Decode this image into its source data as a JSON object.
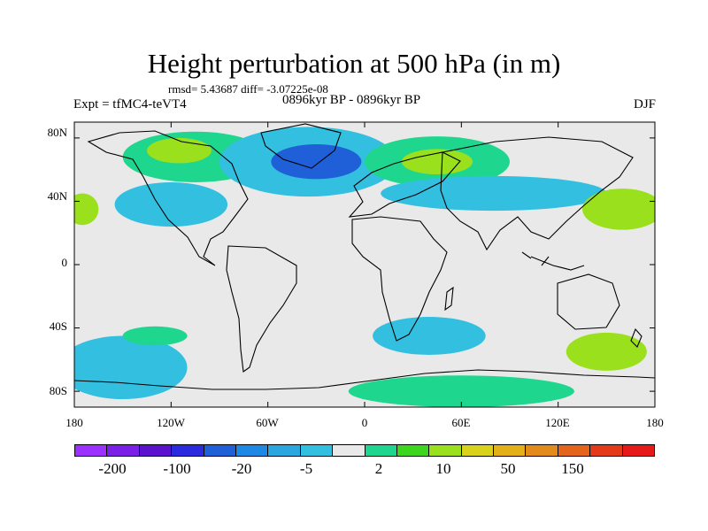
{
  "title": "Height perturbation at 500 hPa (in m)",
  "stats": "rmsd= 5.43687 diff= -3.07225e-08",
  "experiment": "Expt = tfMC4-teVT4",
  "period": "0896kyr BP - 0896kyr BP",
  "season": "DJF",
  "lat_labels": [
    "80N",
    "40N",
    "0",
    "40S",
    "80S"
  ],
  "lon_labels": [
    "180",
    "120W",
    "60W",
    "0",
    "60E",
    "120E",
    "180"
  ],
  "colorbar": {
    "colors": [
      "#9b30ff",
      "#7a1fe6",
      "#5a12cc",
      "#2a2adf",
      "#1f5fd8",
      "#1e88e5",
      "#2aa7df",
      "#33bfe0",
      "#e9e9e9",
      "#1fd68f",
      "#3cd61f",
      "#9be01c",
      "#d8d31a",
      "#e3b01a",
      "#e38b1a",
      "#e3641a",
      "#e33a1a",
      "#e61a1a"
    ],
    "labels": [
      "-200",
      "-100",
      "-20",
      "-5",
      "2",
      "10",
      "50",
      "150"
    ]
  },
  "map": {
    "projection": "cylindrical equidistant",
    "lon_range": [
      -180,
      180
    ],
    "lat_range": [
      -90,
      90
    ],
    "background_color": "#e9e9e9",
    "fields": [
      {
        "name": "north-america-arctic-positive",
        "lon": -105,
        "lat": 68,
        "rx": 45,
        "ry": 16,
        "color": "#1fd68f"
      },
      {
        "name": "north-america-arctic-core",
        "lon": -115,
        "lat": 72,
        "rx": 20,
        "ry": 8,
        "color": "#9be01c"
      },
      {
        "name": "north-atlantic-negative",
        "lon": -35,
        "lat": 65,
        "rx": 55,
        "ry": 22,
        "color": "#33bfe0"
      },
      {
        "name": "north-atlantic-core",
        "lon": -30,
        "lat": 65,
        "rx": 28,
        "ry": 11,
        "color": "#1f5fd8"
      },
      {
        "name": "eurasia-positive",
        "lon": 45,
        "lat": 65,
        "rx": 45,
        "ry": 16,
        "color": "#1fd68f"
      },
      {
        "name": "eurasia-core",
        "lon": 45,
        "lat": 65,
        "rx": 22,
        "ry": 8,
        "color": "#9be01c"
      },
      {
        "name": "asia-negative",
        "lon": 80,
        "lat": 45,
        "rx": 70,
        "ry": 11,
        "color": "#33bfe0"
      },
      {
        "name": "north-pacific-positive",
        "lon": 160,
        "lat": 35,
        "rx": 25,
        "ry": 13,
        "color": "#9be01c"
      },
      {
        "name": "east-pacific-positive",
        "lon": -175,
        "lat": 35,
        "rx": 10,
        "ry": 10,
        "color": "#9be01c"
      },
      {
        "name": "us-negative",
        "lon": -120,
        "lat": 38,
        "rx": 35,
        "ry": 14,
        "color": "#33bfe0"
      },
      {
        "name": "south-pacific-negative",
        "lon": -150,
        "lat": -65,
        "rx": 40,
        "ry": 20,
        "color": "#33bfe0"
      },
      {
        "name": "south-atlantic-positive",
        "lon": -130,
        "lat": -45,
        "rx": 20,
        "ry": 6,
        "color": "#1fd68f"
      },
      {
        "name": "southern-ocean-negative",
        "lon": 40,
        "lat": -45,
        "rx": 35,
        "ry": 12,
        "color": "#33bfe0"
      },
      {
        "name": "south-indian-positive",
        "lon": 150,
        "lat": -55,
        "rx": 25,
        "ry": 12,
        "color": "#9be01c"
      },
      {
        "name": "antarctic-positive",
        "lon": 60,
        "lat": -80,
        "rx": 70,
        "ry": 10,
        "color": "#1fd68f"
      }
    ]
  }
}
